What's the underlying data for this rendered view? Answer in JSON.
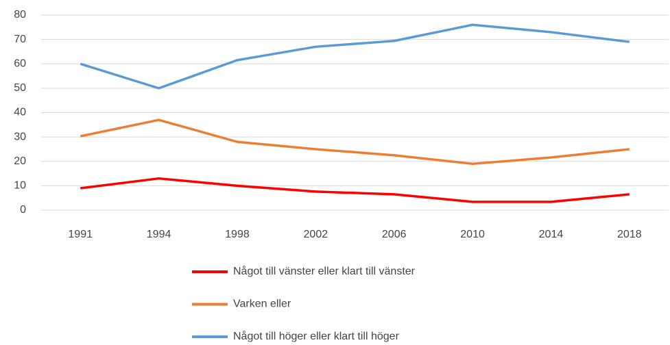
{
  "chart_data": {
    "type": "line",
    "categories": [
      "1991",
      "1994",
      "1998",
      "2002",
      "2006",
      "2010",
      "2014",
      "2018"
    ],
    "series": [
      {
        "name": "Något till vänster eller klart till vänster",
        "color": "#ff0000",
        "values": [
          9,
          13,
          10,
          7.6,
          6.5,
          3.4,
          3.4,
          6.5
        ]
      },
      {
        "name": "Varken eller",
        "color": "#ed7d31",
        "values": [
          30.3,
          37,
          28,
          25,
          22.5,
          19,
          21.6,
          25
        ]
      },
      {
        "name": "Något till höger eller klart till höger",
        "color": "#5b9bd5",
        "values": [
          60,
          50,
          61.5,
          67,
          69.4,
          76,
          73,
          69
        ]
      }
    ],
    "ylim": [
      0,
      80
    ],
    "yticks": [
      0,
      10,
      20,
      30,
      40,
      50,
      60,
      70,
      80
    ],
    "grid": true,
    "legend": "bottom"
  }
}
